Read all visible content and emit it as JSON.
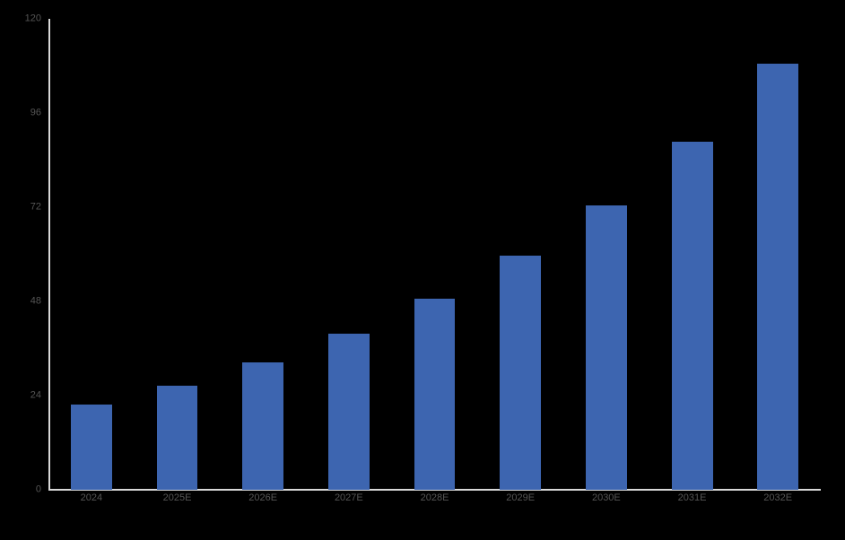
{
  "chart_data": {
    "type": "bar",
    "title": "",
    "xlabel": "",
    "ylabel": "",
    "categories": [
      "2024",
      "2025E",
      "2026E",
      "2027E",
      "2028E",
      "2029E",
      "2030E",
      "2031E",
      "2032E"
    ],
    "values": [
      21.7,
      26.6,
      32.5,
      39.8,
      48.7,
      59.7,
      72.5,
      88.7,
      108.6
    ],
    "ylim": [
      0,
      120
    ],
    "yticks": [
      0,
      24,
      48,
      72,
      96,
      120
    ],
    "grid": false,
    "legend": null,
    "colors": {
      "background": "#000000",
      "bar_fill": "#3D65B0",
      "axis_line": "#D9D9D9",
      "tick_label": "#555555"
    }
  }
}
